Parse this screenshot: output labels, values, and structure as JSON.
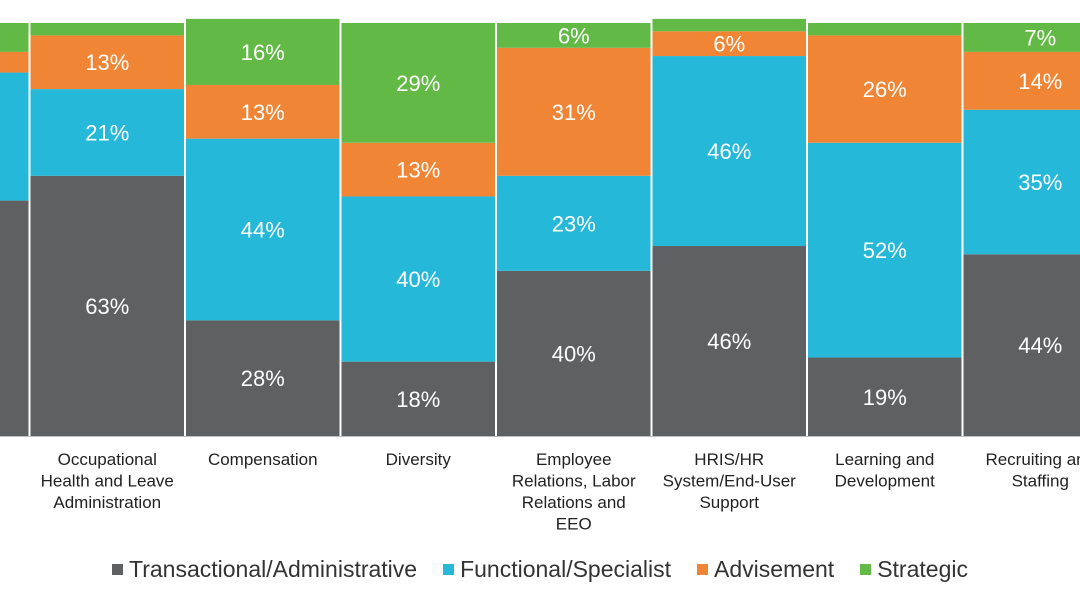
{
  "chart_data": {
    "type": "bar",
    "stacked": "percent",
    "categories": [
      "",
      "Occupational Health and Leave Administration",
      "Compensation",
      "Diversity",
      "Employee Relations, Labor Relations and EEO",
      "HRIS/HR System/End-User Support",
      "Learning and Development",
      "Recruiting and Staffing"
    ],
    "category_lines": [
      [],
      [
        "Occupational",
        "Health and Leave",
        "Administration"
      ],
      [
        "Compensation"
      ],
      [
        "Diversity"
      ],
      [
        "Employee",
        "Relations, Labor",
        "Relations and",
        "EEO"
      ],
      [
        "HRIS/HR",
        "System/End-User",
        "Support"
      ],
      [
        "Learning and",
        "Development"
      ],
      [
        "Recruiting and",
        "Staffing"
      ]
    ],
    "series": [
      {
        "name": "Transactional/Administrative",
        "color": "#5f6062",
        "values": [
          57,
          63,
          28,
          18,
          40,
          46,
          19,
          44
        ]
      },
      {
        "name": "Functional/Specialist",
        "color": "#26b8d8",
        "values": [
          31,
          21,
          44,
          40,
          23,
          46,
          52,
          35
        ]
      },
      {
        "name": "Advisement",
        "color": "#ef8535",
        "values": [
          5,
          13,
          13,
          13,
          31,
          6,
          26,
          14
        ]
      },
      {
        "name": "Strategic",
        "color": "#62b946",
        "values": [
          7,
          3,
          16,
          29,
          6,
          3,
          3,
          7
        ]
      }
    ],
    "value_labels": [
      [
        "",
        "",
        "",
        ""
      ],
      [
        "63%",
        "21%",
        "13%",
        ""
      ],
      [
        "28%",
        "44%",
        "13%",
        "16%"
      ],
      [
        "18%",
        "40%",
        "13%",
        "29%"
      ],
      [
        "40%",
        "23%",
        "31%",
        "6%"
      ],
      [
        "46%",
        "46%",
        "6%",
        ""
      ],
      [
        "19%",
        "52%",
        "26%",
        ""
      ],
      [
        "44%",
        "35%",
        "14%",
        "7%"
      ]
    ],
    "ylim": [
      0,
      100
    ],
    "legend_position": "bottom",
    "grid": false
  }
}
